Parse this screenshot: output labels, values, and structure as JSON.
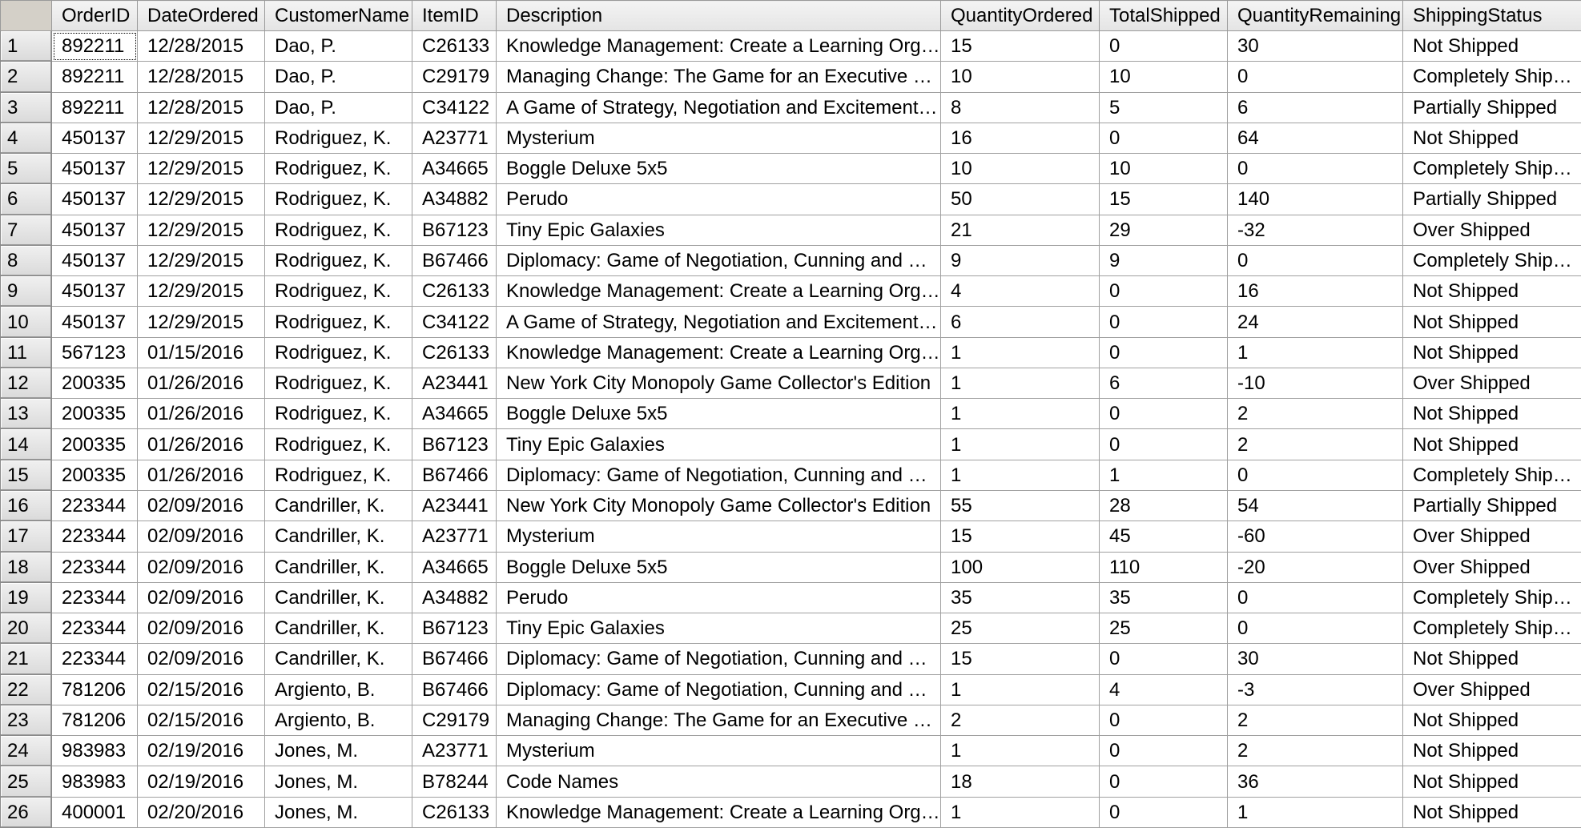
{
  "grid": {
    "columns": [
      "OrderID",
      "DateOrdered",
      "CustomerName",
      "ItemID",
      "Description",
      "QuantityOrdered",
      "TotalShipped",
      "QuantityRemaining",
      "ShippingStatus"
    ],
    "rows": [
      {
        "num": "1",
        "cells": [
          "892211",
          "12/28/2015",
          "Dao, P.",
          "C26133",
          "Knowledge Management: Create a Learning Organiza...",
          "15",
          "0",
          "30",
          "Not Shipped"
        ]
      },
      {
        "num": "2",
        "cells": [
          "892211",
          "12/28/2015",
          "Dao, P.",
          "C29179",
          "Managing Change: The Game for an Executive Retreat",
          "10",
          "10",
          "0",
          "Completely Shipped"
        ]
      },
      {
        "num": "3",
        "cells": [
          "892211",
          "12/28/2015",
          "Dao, P.",
          "C34122",
          "A Game of Strategy, Negotiation and Excitement for ...",
          "8",
          "5",
          "6",
          "Partially Shipped"
        ]
      },
      {
        "num": "4",
        "cells": [
          "450137",
          "12/29/2015",
          "Rodriguez, K.",
          "A23771",
          "Mysterium",
          "16",
          "0",
          "64",
          "Not Shipped"
        ]
      },
      {
        "num": "5",
        "cells": [
          "450137",
          "12/29/2015",
          "Rodriguez, K.",
          "A34665",
          "Boggle Deluxe 5x5",
          "10",
          "10",
          "0",
          "Completely Shipped"
        ]
      },
      {
        "num": "6",
        "cells": [
          "450137",
          "12/29/2015",
          "Rodriguez, K.",
          "A34882",
          "Perudo",
          "50",
          "15",
          "140",
          "Partially Shipped"
        ]
      },
      {
        "num": "7",
        "cells": [
          "450137",
          "12/29/2015",
          "Rodriguez, K.",
          "B67123",
          "Tiny Epic Galaxies",
          "21",
          "29",
          "-32",
          "Over Shipped"
        ]
      },
      {
        "num": "8",
        "cells": [
          "450137",
          "12/29/2015",
          "Rodriguez, K.",
          "B67466",
          "Diplomacy: Game of Negotiation, Cunning and Deceit.",
          "9",
          "9",
          "0",
          "Completely Shipped"
        ]
      },
      {
        "num": "9",
        "cells": [
          "450137",
          "12/29/2015",
          "Rodriguez, K.",
          "C26133",
          "Knowledge Management: Create a Learning Organiza...",
          "4",
          "0",
          "16",
          "Not Shipped"
        ]
      },
      {
        "num": "10",
        "cells": [
          "450137",
          "12/29/2015",
          "Rodriguez, K.",
          "C34122",
          "A Game of Strategy, Negotiation and Excitement for ...",
          "6",
          "0",
          "24",
          "Not Shipped"
        ]
      },
      {
        "num": "11",
        "cells": [
          "567123",
          "01/15/2016",
          "Rodriguez, K.",
          "C26133",
          "Knowledge Management: Create a Learning Organiza...",
          "1",
          "0",
          "1",
          "Not Shipped"
        ]
      },
      {
        "num": "12",
        "cells": [
          "200335",
          "01/26/2016",
          "Rodriguez, K.",
          "A23441",
          "New York City Monopoly Game Collector's Edition",
          "1",
          "6",
          "-10",
          "Over Shipped"
        ]
      },
      {
        "num": "13",
        "cells": [
          "200335",
          "01/26/2016",
          "Rodriguez, K.",
          "A34665",
          "Boggle Deluxe 5x5",
          "1",
          "0",
          "2",
          "Not Shipped"
        ]
      },
      {
        "num": "14",
        "cells": [
          "200335",
          "01/26/2016",
          "Rodriguez, K.",
          "B67123",
          "Tiny Epic Galaxies",
          "1",
          "0",
          "2",
          "Not Shipped"
        ]
      },
      {
        "num": "15",
        "cells": [
          "200335",
          "01/26/2016",
          "Rodriguez, K.",
          "B67466",
          "Diplomacy: Game of Negotiation, Cunning and Deceit.",
          "1",
          "1",
          "0",
          "Completely Shipped"
        ]
      },
      {
        "num": "16",
        "cells": [
          "223344",
          "02/09/2016",
          "Candriller, K.",
          "A23441",
          "New York City Monopoly Game Collector's Edition",
          "55",
          "28",
          "54",
          "Partially Shipped"
        ]
      },
      {
        "num": "17",
        "cells": [
          "223344",
          "02/09/2016",
          "Candriller, K.",
          "A23771",
          "Mysterium",
          "15",
          "45",
          "-60",
          "Over Shipped"
        ]
      },
      {
        "num": "18",
        "cells": [
          "223344",
          "02/09/2016",
          "Candriller, K.",
          "A34665",
          "Boggle Deluxe 5x5",
          "100",
          "110",
          "-20",
          "Over Shipped"
        ]
      },
      {
        "num": "19",
        "cells": [
          "223344",
          "02/09/2016",
          "Candriller, K.",
          "A34882",
          "Perudo",
          "35",
          "35",
          "0",
          "Completely Shipped"
        ]
      },
      {
        "num": "20",
        "cells": [
          "223344",
          "02/09/2016",
          "Candriller, K.",
          "B67123",
          "Tiny Epic Galaxies",
          "25",
          "25",
          "0",
          "Completely Shipped"
        ]
      },
      {
        "num": "21",
        "cells": [
          "223344",
          "02/09/2016",
          "Candriller, K.",
          "B67466",
          "Diplomacy: Game of Negotiation, Cunning and Deceit.",
          "15",
          "0",
          "30",
          "Not Shipped"
        ]
      },
      {
        "num": "22",
        "cells": [
          "781206",
          "02/15/2016",
          "Argiento, B.",
          "B67466",
          "Diplomacy: Game of Negotiation, Cunning and Deceit.",
          "1",
          "4",
          "-3",
          "Over Shipped"
        ]
      },
      {
        "num": "23",
        "cells": [
          "781206",
          "02/15/2016",
          "Argiento, B.",
          "C29179",
          "Managing Change: The Game for an Executive Retreat",
          "2",
          "0",
          "2",
          "Not Shipped"
        ]
      },
      {
        "num": "24",
        "cells": [
          "983983",
          "02/19/2016",
          "Jones, M.",
          "A23771",
          "Mysterium",
          "1",
          "0",
          "2",
          "Not Shipped"
        ]
      },
      {
        "num": "25",
        "cells": [
          "983983",
          "02/19/2016",
          "Jones, M.",
          "B78244",
          "Code Names",
          "18",
          "0",
          "36",
          "Not Shipped"
        ]
      },
      {
        "num": "26",
        "cells": [
          "400001",
          "02/20/2016",
          "Jones, M.",
          "C26133",
          "Knowledge Management: Create a Learning Organiza...",
          "1",
          "0",
          "1",
          "Not Shipped"
        ]
      }
    ]
  }
}
